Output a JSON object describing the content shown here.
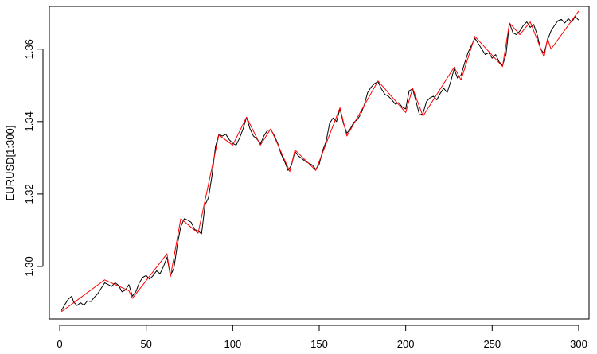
{
  "chart_data": {
    "type": "line",
    "title": "",
    "xlabel": "",
    "ylabel": "EURUSD[1:300]",
    "xlim": [
      -6,
      306
    ],
    "ylim": [
      1.2855,
      1.3718
    ],
    "x_ticks": [
      0,
      50,
      100,
      150,
      200,
      250,
      300
    ],
    "y_ticks": [
      1.3,
      1.32,
      1.34,
      1.36
    ],
    "x_tick_labels": [
      "0",
      "50",
      "100",
      "150",
      "200",
      "250",
      "300"
    ],
    "y_tick_labels": [
      "1.30",
      "1.32",
      "1.34",
      "1.36"
    ],
    "grid": false,
    "legend": "none",
    "series": [
      {
        "color": "#000000",
        "points": [
          [
            1,
            1.2878
          ],
          [
            3,
            1.2895
          ],
          [
            5,
            1.291
          ],
          [
            7,
            1.2918
          ],
          [
            8,
            1.2902
          ],
          [
            10,
            1.2892
          ],
          [
            12,
            1.29
          ],
          [
            14,
            1.2893
          ],
          [
            16,
            1.2905
          ],
          [
            18,
            1.2903
          ],
          [
            20,
            1.2915
          ],
          [
            22,
            1.2925
          ],
          [
            24,
            1.294
          ],
          [
            26,
            1.2955
          ],
          [
            28,
            1.295
          ],
          [
            30,
            1.2945
          ],
          [
            32,
            1.2955
          ],
          [
            34,
            1.2948
          ],
          [
            36,
            1.293
          ],
          [
            38,
            1.2935
          ],
          [
            40,
            1.295
          ],
          [
            42,
            1.2918
          ],
          [
            44,
            1.293
          ],
          [
            46,
            1.2955
          ],
          [
            48,
            1.297
          ],
          [
            50,
            1.2975
          ],
          [
            52,
            1.2965
          ],
          [
            54,
            1.2975
          ],
          [
            56,
            1.2988
          ],
          [
            58,
            1.298
          ],
          [
            60,
            1.3
          ],
          [
            62,
            1.3025
          ],
          [
            64,
            1.2975
          ],
          [
            66,
            1.2995
          ],
          [
            68,
            1.306
          ],
          [
            70,
            1.311
          ],
          [
            72,
            1.3132
          ],
          [
            74,
            1.3128
          ],
          [
            76,
            1.3122
          ],
          [
            78,
            1.3102
          ],
          [
            80,
            1.3098
          ],
          [
            82,
            1.309
          ],
          [
            84,
            1.317
          ],
          [
            86,
            1.319
          ],
          [
            88,
            1.325
          ],
          [
            90,
            1.333
          ],
          [
            92,
            1.3365
          ],
          [
            94,
            1.336
          ],
          [
            96,
            1.3365
          ],
          [
            98,
            1.335
          ],
          [
            100,
            1.334
          ],
          [
            102,
            1.3335
          ],
          [
            104,
            1.3355
          ],
          [
            106,
            1.338
          ],
          [
            108,
            1.3412
          ],
          [
            110,
            1.338
          ],
          [
            112,
            1.336
          ],
          [
            114,
            1.3352
          ],
          [
            116,
            1.3338
          ],
          [
            118,
            1.336
          ],
          [
            120,
            1.3375
          ],
          [
            122,
            1.3378
          ],
          [
            124,
            1.3362
          ],
          [
            126,
            1.334
          ],
          [
            128,
            1.331
          ],
          [
            130,
            1.329
          ],
          [
            132,
            1.3265
          ],
          [
            134,
            1.328
          ],
          [
            136,
            1.3318
          ],
          [
            138,
            1.3305
          ],
          [
            140,
            1.3298
          ],
          [
            142,
            1.329
          ],
          [
            144,
            1.3285
          ],
          [
            146,
            1.328
          ],
          [
            148,
            1.3268
          ],
          [
            150,
            1.3282
          ],
          [
            152,
            1.332
          ],
          [
            154,
            1.3345
          ],
          [
            156,
            1.3395
          ],
          [
            158,
            1.341
          ],
          [
            160,
            1.34
          ],
          [
            162,
            1.3435
          ],
          [
            164,
            1.3395
          ],
          [
            166,
            1.3368
          ],
          [
            168,
            1.338
          ],
          [
            170,
            1.3398
          ],
          [
            172,
            1.3405
          ],
          [
            174,
            1.342
          ],
          [
            176,
            1.3445
          ],
          [
            178,
            1.348
          ],
          [
            180,
            1.3495
          ],
          [
            182,
            1.3505
          ],
          [
            184,
            1.351
          ],
          [
            186,
            1.349
          ],
          [
            188,
            1.3475
          ],
          [
            190,
            1.347
          ],
          [
            192,
            1.346
          ],
          [
            194,
            1.3448
          ],
          [
            196,
            1.3452
          ],
          [
            198,
            1.344
          ],
          [
            200,
            1.3435
          ],
          [
            202,
            1.3485
          ],
          [
            204,
            1.349
          ],
          [
            206,
            1.3455
          ],
          [
            208,
            1.3418
          ],
          [
            210,
            1.3422
          ],
          [
            212,
            1.3455
          ],
          [
            214,
            1.3465
          ],
          [
            216,
            1.347
          ],
          [
            218,
            1.346
          ],
          [
            220,
            1.3478
          ],
          [
            222,
            1.3492
          ],
          [
            224,
            1.348
          ],
          [
            226,
            1.351
          ],
          [
            228,
            1.3545
          ],
          [
            230,
            1.352
          ],
          [
            232,
            1.3528
          ],
          [
            234,
            1.356
          ],
          [
            236,
            1.359
          ],
          [
            238,
            1.361
          ],
          [
            240,
            1.363
          ],
          [
            242,
            1.3615
          ],
          [
            244,
            1.36
          ],
          [
            246,
            1.3585
          ],
          [
            248,
            1.359
          ],
          [
            250,
            1.3575
          ],
          [
            252,
            1.3585
          ],
          [
            254,
            1.3565
          ],
          [
            256,
            1.3555
          ],
          [
            258,
            1.3585
          ],
          [
            260,
            1.3672
          ],
          [
            262,
            1.3645
          ],
          [
            264,
            1.364
          ],
          [
            266,
            1.365
          ],
          [
            268,
            1.3665
          ],
          [
            270,
            1.3675
          ],
          [
            272,
            1.366
          ],
          [
            274,
            1.3668
          ],
          [
            276,
            1.364
          ],
          [
            278,
            1.36
          ],
          [
            280,
            1.3588
          ],
          [
            282,
            1.3625
          ],
          [
            284,
            1.365
          ],
          [
            286,
            1.3665
          ],
          [
            288,
            1.3678
          ],
          [
            290,
            1.3682
          ],
          [
            292,
            1.3672
          ],
          [
            294,
            1.3684
          ],
          [
            296,
            1.3675
          ],
          [
            298,
            1.369
          ],
          [
            300,
            1.368
          ]
        ]
      },
      {
        "color": "#ff0000",
        "points": [
          [
            1,
            1.2875
          ],
          [
            26,
            1.2963
          ],
          [
            40,
            1.2933
          ],
          [
            42,
            1.2912
          ],
          [
            62,
            1.3035
          ],
          [
            64,
            1.2972
          ],
          [
            70,
            1.3132
          ],
          [
            80,
            1.3092
          ],
          [
            92,
            1.3363
          ],
          [
            100,
            1.3335
          ],
          [
            108,
            1.3412
          ],
          [
            116,
            1.3335
          ],
          [
            122,
            1.338
          ],
          [
            133,
            1.3262
          ],
          [
            136,
            1.3322
          ],
          [
            148,
            1.3265
          ],
          [
            162,
            1.3438
          ],
          [
            166,
            1.336
          ],
          [
            184,
            1.3512
          ],
          [
            200,
            1.3425
          ],
          [
            204,
            1.3492
          ],
          [
            210,
            1.3415
          ],
          [
            228,
            1.355
          ],
          [
            232,
            1.3515
          ],
          [
            240,
            1.3635
          ],
          [
            256,
            1.3552
          ],
          [
            260,
            1.3672
          ],
          [
            266,
            1.364
          ],
          [
            272,
            1.3675
          ],
          [
            280,
            1.3578
          ],
          [
            282,
            1.363
          ],
          [
            284,
            1.36
          ],
          [
            300,
            1.3705
          ]
        ]
      }
    ]
  }
}
